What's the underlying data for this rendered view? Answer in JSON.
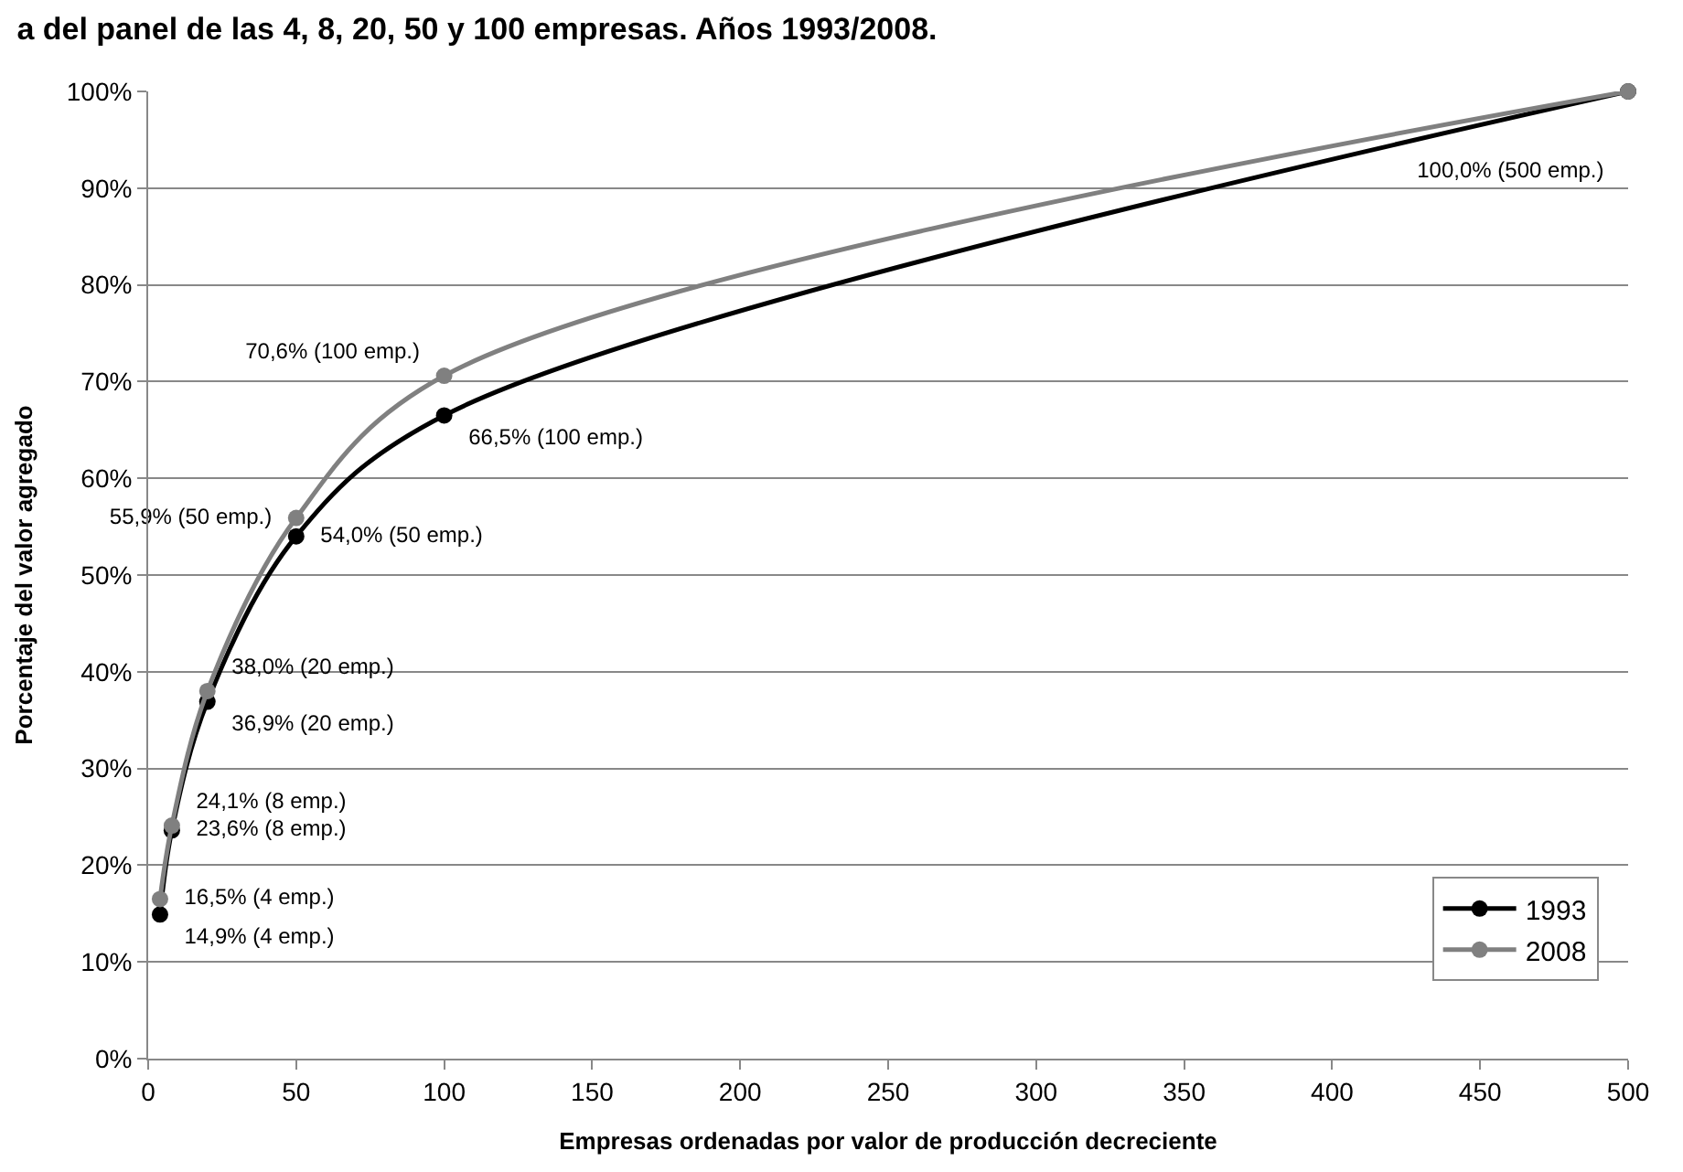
{
  "chart_data": {
    "type": "line",
    "title": "a del panel de las 4, 8, 20, 50 y 100 empresas. Años 1993/2008.",
    "xlabel": "Empresas ordenadas por valor de producción decreciente",
    "ylabel": "Porcentaje del valor agregado",
    "x": [
      4,
      8,
      20,
      50,
      100,
      500
    ],
    "series": [
      {
        "name": "1993",
        "color": "#000000",
        "values": [
          14.9,
          23.6,
          36.9,
          54.0,
          66.5,
          100.0
        ],
        "value_labels": [
          "14,9% (4 emp.)",
          "23,6% (8 emp.)",
          "36,9% (20 emp.)",
          "54,0% (50 emp.)",
          "66,5% (100 emp.)",
          null
        ]
      },
      {
        "name": "2008",
        "color": "#808080",
        "values": [
          16.5,
          24.1,
          38.0,
          55.9,
          70.6,
          100.0
        ],
        "value_labels": [
          "16,5% (4 emp.)",
          "24,1% (8 emp.)",
          "38,0% (20 emp.)",
          "55,9% (50 emp.)",
          "70,6% (100 emp.)",
          "100,0% (500 emp.)"
        ]
      }
    ],
    "xlim": [
      0,
      500
    ],
    "xticks": [
      0,
      50,
      100,
      150,
      200,
      250,
      300,
      350,
      400,
      450,
      500
    ],
    "ylim": [
      0,
      100
    ],
    "yticks": [
      {
        "value": 0,
        "label": "0%"
      },
      {
        "value": 10,
        "label": "10%"
      },
      {
        "value": 20,
        "label": "20%"
      },
      {
        "value": 30,
        "label": "30%"
      },
      {
        "value": 40,
        "label": "40%"
      },
      {
        "value": 50,
        "label": "50%"
      },
      {
        "value": 60,
        "label": "60%"
      },
      {
        "value": 70,
        "label": "70%"
      },
      {
        "value": 80,
        "label": "80%"
      },
      {
        "value": 90,
        "label": "90%"
      },
      {
        "value": 100,
        "label": "100%"
      }
    ],
    "grid": "y",
    "legend": "bottom right",
    "marker": "circle",
    "line_style": "solid"
  }
}
